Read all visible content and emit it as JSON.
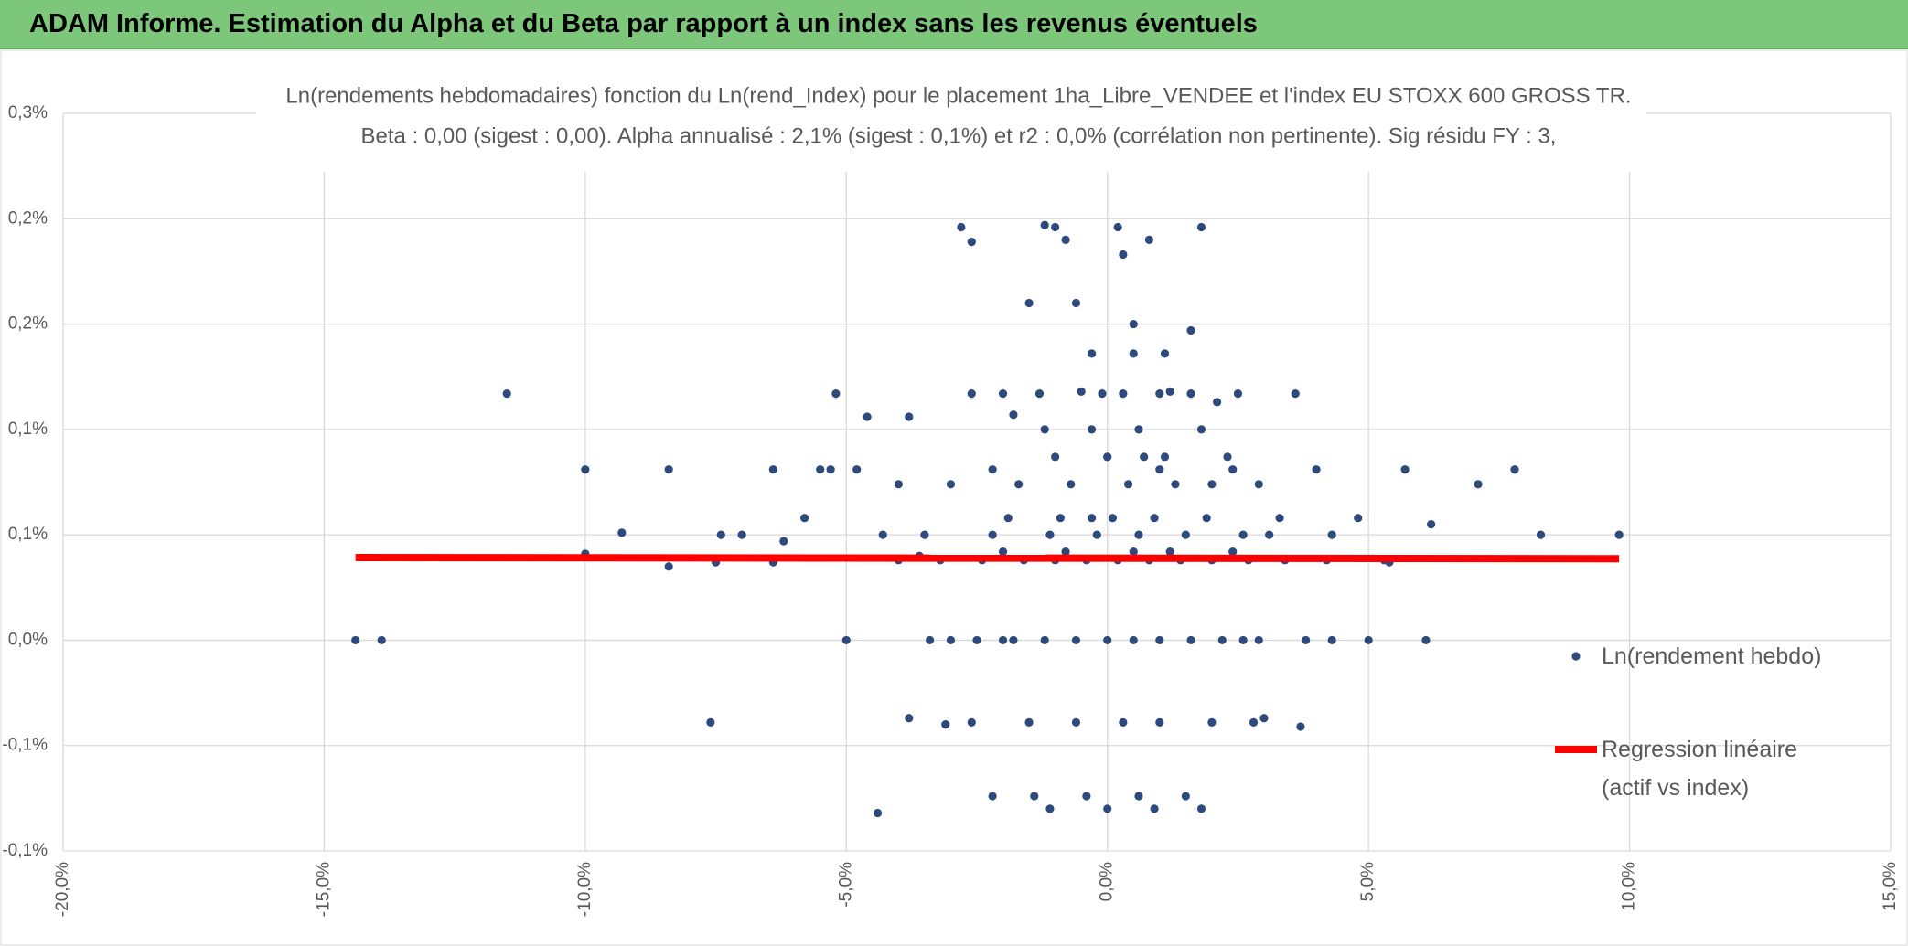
{
  "header": {
    "title": "ADAM Informe. Estimation du Alpha et du Beta par rapport à un index sans les revenus éventuels"
  },
  "chart_data": {
    "type": "scatter",
    "title": "Ln(rendements hebdomadaires) fonction du Ln(rend_Index) pour le placement 1ha_Libre_VENDEE et l'index EU STOXX 600 GROSS TR.",
    "subtitle": "Beta : 0,00 (sigest : 0,00). Alpha annualisé : 2,1% (sigest : 0,1%) et r2 : 0,0% (corrélation non pertinente). Sig résidu FY : 3,",
    "xlim": [
      -20,
      15
    ],
    "xticks": [
      {
        "value": -20,
        "label": "-20,0%"
      },
      {
        "value": -15,
        "label": "-15,0%"
      },
      {
        "value": -10,
        "label": "-10,0%"
      },
      {
        "value": -5,
        "label": "-5,0%"
      },
      {
        "value": 0,
        "label": "0,0%"
      },
      {
        "value": 5,
        "label": "5,0%"
      },
      {
        "value": 10,
        "label": "10,0%"
      },
      {
        "value": 15,
        "label": "15,0%"
      }
    ],
    "ylim": [
      -0.1,
      0.25
    ],
    "yticks": [
      {
        "value": -0.1,
        "label": "-0,1%"
      },
      {
        "value": -0.05,
        "label": "-0,1%"
      },
      {
        "value": 0,
        "label": "0,0%"
      },
      {
        "value": 0.05,
        "label": "0,1%"
      },
      {
        "value": 0.1,
        "label": "0,1%"
      },
      {
        "value": 0.15,
        "label": "0,2%"
      },
      {
        "value": 0.2,
        "label": "0,2%"
      },
      {
        "value": 0.25,
        "label": "0,3%"
      }
    ],
    "grid": true,
    "legend": "right",
    "series": [
      {
        "name": "Ln(rendement hebdo)",
        "color": "#2e4a7d",
        "type": "scatter",
        "x": [
          -14.4,
          -13.9,
          -11.5,
          -10.0,
          -10.0,
          -9.3,
          -8.4,
          -8.4,
          -7.6,
          -7.5,
          -7.4,
          -7.0,
          -6.4,
          -6.4,
          -6.2,
          -5.8,
          -5.5,
          -5.3,
          -5.2,
          -5.0,
          -4.8,
          -4.6,
          -4.4,
          -4.3,
          -4.0,
          -3.8,
          -3.8,
          -3.6,
          -3.4,
          -3.0,
          -3.1,
          -2.8,
          -2.6,
          -2.6,
          -2.2,
          -2.2,
          -2.0,
          -1.8,
          -1.5,
          -1.2,
          -1.0,
          -0.8,
          -0.6,
          -0.5,
          -0.3,
          0.0,
          0.2,
          0.3,
          0.5,
          0.8,
          1.0,
          1.2,
          1.6,
          1.8,
          2.1,
          2.4,
          2.6,
          3.0,
          3.3,
          3.6,
          3.7,
          4.0,
          4.3,
          4.8,
          5.0,
          5.4,
          5.7,
          6.1,
          6.2,
          7.1,
          7.8,
          8.3,
          9.8,
          -2.5,
          -1.8,
          -1.2,
          -0.6,
          0.0,
          0.5,
          1.0,
          1.6,
          2.2,
          2.9,
          3.8,
          4.3,
          -4.0,
          -3.2,
          -2.4,
          -1.6,
          -1.0,
          -0.4,
          0.2,
          0.8,
          1.4,
          2.0,
          2.7,
          3.4,
          4.2,
          5.3,
          -2.0,
          -0.8,
          0.5,
          1.2,
          2.4,
          -3.5,
          -2.2,
          -1.1,
          -0.2,
          0.6,
          1.5,
          2.6,
          3.1,
          -1.9,
          -0.9,
          0.1,
          0.9,
          1.9,
          -3.0,
          -1.7,
          -0.7,
          0.4,
          1.3,
          2.0,
          2.9,
          -1.0,
          0.0,
          0.7,
          1.1,
          2.3,
          -1.2,
          -0.3,
          0.6,
          1.8,
          -2.0,
          -1.3,
          -0.1,
          0.3,
          1.0,
          1.6,
          2.5,
          -0.3,
          0.5,
          1.1,
          -2.6,
          -1.5,
          -0.6,
          0.3,
          1.0,
          2.0,
          2.8,
          -1.4,
          -0.4,
          0.6,
          1.5,
          -1.1,
          0.0,
          0.9,
          1.8
        ],
        "values": [
          0.0,
          0.0,
          0.117,
          0.081,
          0.041,
          0.051,
          0.081,
          0.035,
          -0.039,
          0.037,
          0.05,
          0.05,
          0.081,
          0.037,
          0.047,
          0.058,
          0.081,
          0.081,
          0.117,
          0.0,
          0.081,
          0.106,
          -0.082,
          0.05,
          0.074,
          0.106,
          -0.037,
          0.04,
          0.0,
          0.0,
          -0.04,
          0.196,
          0.189,
          0.117,
          0.081,
          -0.074,
          0.0,
          0.107,
          0.16,
          0.197,
          0.196,
          0.19,
          0.16,
          0.118,
          0.058,
          0.087,
          0.196,
          0.183,
          0.15,
          0.19,
          0.081,
          0.118,
          0.147,
          0.196,
          0.113,
          0.081,
          0.0,
          -0.037,
          0.058,
          0.117,
          -0.041,
          0.081,
          0.05,
          0.058,
          0.0,
          0.037,
          0.081,
          0.0,
          0.055,
          0.074,
          0.081,
          0.05,
          0.05,
          0.0,
          0.0,
          0.0,
          0.0,
          0.0,
          0.0,
          0.0,
          0.0,
          0.0,
          0.0,
          0.0,
          0.0,
          0.038,
          0.038,
          0.038,
          0.038,
          0.038,
          0.038,
          0.038,
          0.038,
          0.038,
          0.038,
          0.038,
          0.038,
          0.038,
          0.038,
          0.042,
          0.042,
          0.042,
          0.042,
          0.042,
          0.05,
          0.05,
          0.05,
          0.05,
          0.05,
          0.05,
          0.05,
          0.05,
          0.058,
          0.058,
          0.058,
          0.058,
          0.058,
          0.074,
          0.074,
          0.074,
          0.074,
          0.074,
          0.074,
          0.074,
          0.087,
          0.087,
          0.087,
          0.087,
          0.087,
          0.1,
          0.1,
          0.1,
          0.1,
          0.117,
          0.117,
          0.117,
          0.117,
          0.117,
          0.117,
          0.117,
          0.136,
          0.136,
          0.136,
          -0.039,
          -0.039,
          -0.039,
          -0.039,
          -0.039,
          -0.039,
          -0.039,
          -0.074,
          -0.074,
          -0.074,
          -0.074,
          -0.08,
          -0.08,
          -0.08,
          -0.08
        ]
      },
      {
        "name": "Regression linéaire (actif vs index)",
        "color": "#ff0000",
        "type": "line",
        "x": [
          -14.4,
          9.8
        ],
        "values": [
          0.0392,
          0.0387
        ]
      }
    ]
  }
}
